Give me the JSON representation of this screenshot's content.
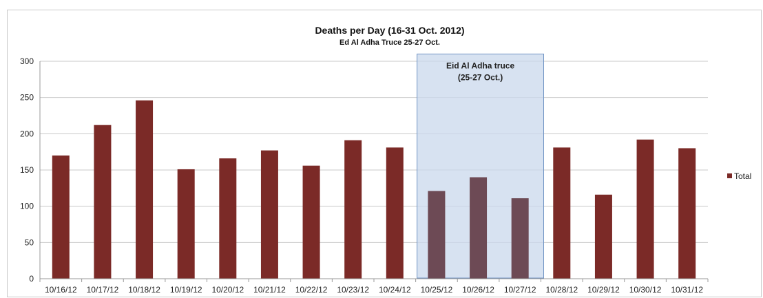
{
  "chart_data": {
    "type": "bar",
    "title": "Deaths per Day (16-31 Oct. 2012)",
    "subtitle": "Ed Al Adha Truce 25-27 Oct.",
    "xlabel": "",
    "ylabel": "",
    "ylim": [
      0,
      300
    ],
    "yticks": [
      0,
      50,
      100,
      150,
      200,
      250,
      300
    ],
    "grid": true,
    "legend_position": "right",
    "categories": [
      "10/16/12",
      "10/17/12",
      "10/18/12",
      "10/19/12",
      "10/20/12",
      "10/21/12",
      "10/22/12",
      "10/23/12",
      "10/24/12",
      "10/25/12",
      "10/26/12",
      "10/27/12",
      "10/28/12",
      "10/29/12",
      "10/30/12",
      "10/31/12"
    ],
    "series": [
      {
        "name": "Total",
        "color": "#7b2a27",
        "values": [
          170,
          212,
          246,
          151,
          166,
          177,
          156,
          191,
          181,
          121,
          140,
          111,
          181,
          116,
          192,
          180
        ]
      }
    ],
    "annotation": {
      "lines": [
        "Eid Al Adha truce",
        "(25-27 Oct.)"
      ],
      "from_category": "10/25/12",
      "to_category": "10/27/12",
      "top_value": 310,
      "fill": "#c9d8ec",
      "stroke": "#6f93c4"
    },
    "gridline_color": "#c8c8c8"
  }
}
